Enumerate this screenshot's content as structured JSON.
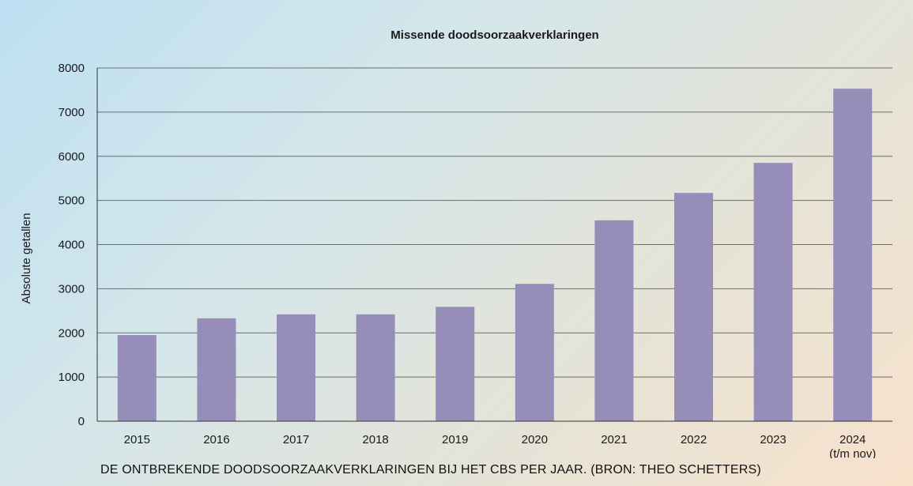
{
  "caption": "DE ONTBREKENDE DOODSOORZAAKVERKLARINGEN BIJ HET CBS PER JAAR. (BRON: THEO SCHETTERS)",
  "colors": {
    "bar": "#968db8",
    "grid": "#6d6d6d",
    "axis": "#333333",
    "text": "#1a1a1a"
  },
  "chart_data": {
    "type": "bar",
    "title": "Missende doodsoorzaakverklaringen",
    "xlabel": "",
    "ylabel": "Absolute getallen",
    "categories": [
      "2015",
      "2016",
      "2017",
      "2018",
      "2019",
      "2020",
      "2021",
      "2022",
      "2023",
      "2024\n(t/m nov)"
    ],
    "values": [
      1950,
      2330,
      2420,
      2420,
      2590,
      3110,
      4550,
      5170,
      5850,
      7530
    ],
    "ylim": [
      0,
      8000
    ],
    "yticks": [
      0,
      1000,
      2000,
      3000,
      4000,
      5000,
      6000,
      7000,
      8000
    ],
    "grid": true,
    "legend": "none"
  }
}
